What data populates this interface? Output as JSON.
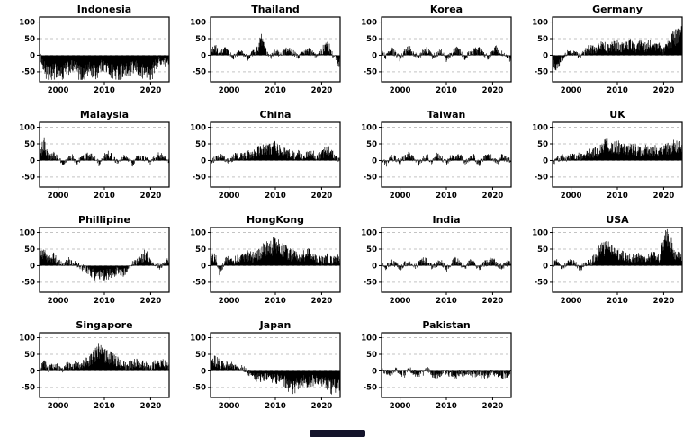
{
  "colors": {
    "background": "#ffffff",
    "bar": "#000000",
    "grid": "#c3c3c3",
    "axis": "#000000",
    "text": "#000000"
  },
  "chart_data": {
    "type": "bar",
    "description": "Small-multiple time-series bar charts, one panel per country, black bars around a zero baseline",
    "layout": {
      "rows": 4,
      "cols": 4,
      "grid": "dashed-horizontal",
      "legend": "none"
    },
    "x_range": [
      1996,
      2024
    ],
    "x_ticks": [
      2000,
      2010,
      2020
    ],
    "y_range": [
      -80,
      115
    ],
    "y_ticks": [
      100,
      50,
      0,
      -50
    ],
    "years": [
      1996,
      1997,
      1998,
      1999,
      2000,
      2001,
      2002,
      2003,
      2004,
      2005,
      2006,
      2007,
      2008,
      2009,
      2010,
      2011,
      2012,
      2013,
      2014,
      2015,
      2016,
      2017,
      2018,
      2019,
      2020,
      2021,
      2022,
      2023
    ],
    "panels": [
      {
        "title": "Indonesia",
        "values": [
          5,
          -40,
          -65,
          -50,
          -45,
          -55,
          -40,
          -35,
          -40,
          -60,
          -50,
          -40,
          -55,
          -35,
          -30,
          -45,
          -50,
          -55,
          -45,
          -50,
          -40,
          -35,
          -55,
          -45,
          -60,
          -30,
          -15,
          -20
        ]
      },
      {
        "title": "Thailand",
        "values": [
          10,
          20,
          5,
          15,
          5,
          -5,
          10,
          5,
          -10,
          5,
          15,
          45,
          10,
          -5,
          10,
          5,
          10,
          15,
          5,
          -5,
          10,
          15,
          5,
          -5,
          10,
          40,
          10,
          -10
        ]
      },
      {
        "title": "Korea",
        "values": [
          10,
          -5,
          15,
          5,
          -10,
          10,
          20,
          5,
          -5,
          10,
          15,
          -5,
          5,
          10,
          -10,
          5,
          15,
          10,
          -5,
          5,
          10,
          15,
          5,
          -5,
          10,
          20,
          5,
          -5
        ]
      },
      {
        "title": "Germany",
        "values": [
          -25,
          -30,
          -10,
          5,
          10,
          5,
          -5,
          10,
          20,
          15,
          25,
          30,
          20,
          25,
          30,
          25,
          35,
          30,
          25,
          30,
          25,
          30,
          20,
          25,
          15,
          30,
          50,
          55
        ]
      },
      {
        "title": "Malaysia",
        "values": [
          20,
          50,
          10,
          15,
          5,
          -10,
          5,
          10,
          -5,
          5,
          10,
          15,
          5,
          -10,
          10,
          20,
          5,
          -5,
          10,
          5,
          -10,
          5,
          10,
          5,
          -5,
          10,
          15,
          5
        ]
      },
      {
        "title": "China",
        "values": [
          -5,
          5,
          10,
          5,
          -5,
          10,
          15,
          10,
          20,
          15,
          25,
          35,
          30,
          35,
          40,
          30,
          25,
          20,
          15,
          20,
          10,
          15,
          20,
          10,
          15,
          35,
          20,
          10
        ]
      },
      {
        "title": "Taiwan",
        "values": [
          5,
          -10,
          10,
          5,
          -5,
          10,
          15,
          5,
          -10,
          5,
          10,
          -5,
          15,
          5,
          -10,
          10,
          5,
          15,
          -5,
          5,
          10,
          -10,
          5,
          15,
          5,
          -5,
          10,
          5
        ]
      },
      {
        "title": "UK",
        "values": [
          -10,
          5,
          10,
          5,
          10,
          15,
          10,
          15,
          20,
          25,
          30,
          40,
          45,
          35,
          40,
          35,
          30,
          35,
          30,
          25,
          30,
          25,
          30,
          25,
          30,
          35,
          45,
          40
        ]
      },
      {
        "title": "Phillipine",
        "values": [
          30,
          35,
          20,
          25,
          10,
          5,
          15,
          10,
          5,
          -5,
          -10,
          -20,
          -30,
          -25,
          -30,
          -25,
          -20,
          -15,
          -20,
          -10,
          5,
          10,
          20,
          35,
          10,
          5,
          -5,
          5
        ]
      },
      {
        "title": "HongKong",
        "values": [
          30,
          25,
          -20,
          10,
          20,
          15,
          20,
          25,
          30,
          25,
          30,
          40,
          50,
          55,
          60,
          50,
          45,
          35,
          30,
          25,
          30,
          35,
          25,
          20,
          15,
          25,
          15,
          20
        ]
      },
      {
        "title": "India",
        "values": [
          5,
          -5,
          10,
          5,
          -10,
          5,
          10,
          -5,
          5,
          15,
          10,
          -5,
          5,
          10,
          -10,
          5,
          15,
          5,
          -5,
          10,
          5,
          -10,
          5,
          10,
          15,
          5,
          -5,
          5
        ]
      },
      {
        "title": "USA",
        "values": [
          5,
          10,
          -5,
          5,
          10,
          5,
          -10,
          5,
          10,
          20,
          40,
          55,
          50,
          45,
          35,
          30,
          25,
          20,
          25,
          30,
          20,
          25,
          30,
          25,
          60,
          95,
          40,
          30
        ]
      },
      {
        "title": "Singapore",
        "values": [
          10,
          20,
          5,
          15,
          10,
          5,
          15,
          10,
          20,
          15,
          25,
          35,
          45,
          60,
          50,
          40,
          35,
          25,
          20,
          15,
          20,
          25,
          20,
          15,
          10,
          20,
          25,
          20
        ]
      },
      {
        "title": "Japan",
        "values": [
          25,
          30,
          20,
          15,
          20,
          10,
          5,
          10,
          -5,
          -10,
          -20,
          -25,
          -15,
          -20,
          -25,
          -20,
          -30,
          -45,
          -50,
          -40,
          -30,
          -35,
          -30,
          -25,
          -30,
          -35,
          -50,
          -45
        ]
      },
      {
        "title": "Pakistan",
        "values": [
          5,
          -5,
          -10,
          5,
          -5,
          -10,
          5,
          -5,
          -10,
          -5,
          5,
          -10,
          -15,
          -10,
          -5,
          -10,
          -15,
          -5,
          -10,
          -5,
          -10,
          -5,
          -15,
          -10,
          -5,
          -10,
          -15,
          -10
        ]
      }
    ]
  }
}
